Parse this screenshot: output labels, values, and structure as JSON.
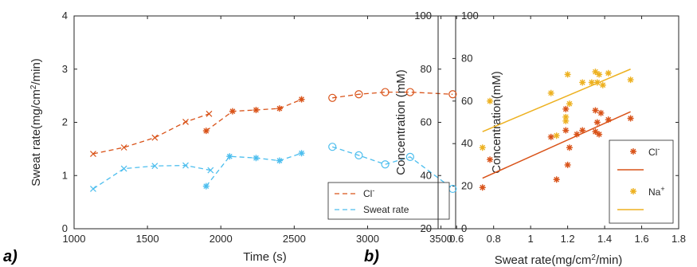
{
  "chart_data": [
    {
      "panel_label": "a)",
      "type": "line",
      "xlabel": "Time (s)",
      "ylabel_left": "Sweat rate(mg/cm²/min)",
      "ylabel_right": "Concentration(mM)",
      "xlim": [
        1000,
        3600
      ],
      "ylim_left": [
        0,
        4
      ],
      "ylim_right": [
        0,
        100
      ],
      "xticks": [
        "1000",
        "1500",
        "2000",
        "2500",
        "3000",
        "3500"
      ],
      "yticks_left": [
        "0",
        "1",
        "2",
        "3",
        "4"
      ],
      "yticks_right": [
        "0",
        "20",
        "40",
        "60",
        "80",
        "100"
      ],
      "legend_position": "bottom-right",
      "series": [
        {
          "name_main": "Cl",
          "name_sup": "-",
          "axis": "right",
          "color": "#d95319",
          "segments": [
            {
              "marker": "x",
              "x": [
                1130,
                1340,
                1550,
                1760,
                1920
              ],
              "y": [
                35.2,
                38.2,
                42.8,
                50.2,
                54.0
              ]
            },
            {
              "marker": "*",
              "x": [
                1900,
                2080,
                2240,
                2400,
                2550
              ],
              "y": [
                46.0,
                55.2,
                55.8,
                56.5,
                60.8
              ]
            },
            {
              "marker": "o",
              "x": [
                2760,
                2940,
                3120,
                3290,
                3580
              ],
              "y": [
                61.5,
                63.2,
                64.2,
                64.2,
                63.2
              ]
            }
          ]
        },
        {
          "name_main": "Sweat rate",
          "name_sup": "",
          "axis": "left",
          "color": "#4dbeee",
          "segments": [
            {
              "marker": "x",
              "x": [
                1130,
                1340,
                1550,
                1760,
                1930
              ],
              "y": [
                0.75,
                1.13,
                1.18,
                1.19,
                1.1
              ]
            },
            {
              "marker": "*",
              "x": [
                1900,
                2060,
                2240,
                2400,
                2550
              ],
              "y": [
                0.8,
                1.36,
                1.33,
                1.28,
                1.42
              ]
            },
            {
              "marker": "o",
              "x": [
                2760,
                2940,
                3120,
                3290,
                3580
              ],
              "y": [
                1.54,
                1.38,
                1.21,
                1.35,
                0.75
              ]
            }
          ]
        }
      ]
    },
    {
      "panel_label": "b)",
      "type": "scatter",
      "xlabel": "Sweat rate(mg/cm²/min)",
      "ylabel": "Concentration (mM)",
      "xlim": [
        0.5,
        1.8
      ],
      "ylim": [
        20,
        100
      ],
      "xticks": [
        "0.6",
        "0.8",
        "1",
        "1.2",
        "1.4",
        "1.6",
        "1.8"
      ],
      "yticks": [
        "20",
        "40",
        "60",
        "80",
        "100"
      ],
      "legend_position": "bottom-right",
      "series": [
        {
          "name_main": "Cl",
          "name_sup": "-",
          "color": "#d95319",
          "points": [
            [
              0.74,
              35.5
            ],
            [
              0.78,
              46.0
            ],
            [
              1.11,
              54.5
            ],
            [
              1.14,
              38.5
            ],
            [
              1.19,
              65.0
            ],
            [
              1.19,
              57.0
            ],
            [
              1.2,
              44.0
            ],
            [
              1.21,
              50.5
            ],
            [
              1.25,
              55.5
            ],
            [
              1.28,
              57.0
            ],
            [
              1.35,
              56.5
            ],
            [
              1.35,
              64.5
            ],
            [
              1.36,
              60.0
            ],
            [
              1.37,
              55.5
            ],
            [
              1.38,
              63.5
            ],
            [
              1.42,
              61.0
            ],
            [
              1.54,
              61.5
            ]
          ],
          "fit": {
            "x": [
              0.74,
              1.54
            ],
            "y": [
              39.0,
              64.0
            ]
          }
        },
        {
          "name_main": "Na",
          "name_sup": "+",
          "color": "#edb120",
          "points": [
            [
              0.74,
              50.5
            ],
            [
              0.78,
              68.0
            ],
            [
              1.11,
              71.0
            ],
            [
              1.14,
              55.0
            ],
            [
              1.19,
              62.0
            ],
            [
              1.19,
              60.5
            ],
            [
              1.2,
              78.0
            ],
            [
              1.21,
              67.0
            ],
            [
              1.28,
              75.0
            ],
            [
              1.33,
              75.0
            ],
            [
              1.35,
              79.0
            ],
            [
              1.36,
              75.0
            ],
            [
              1.37,
              78.0
            ],
            [
              1.39,
              74.0
            ],
            [
              1.42,
              78.5
            ],
            [
              1.54,
              76.0
            ]
          ],
          "fit": {
            "x": [
              0.74,
              1.54
            ],
            "y": [
              56.5,
              80.0
            ]
          }
        }
      ]
    }
  ]
}
